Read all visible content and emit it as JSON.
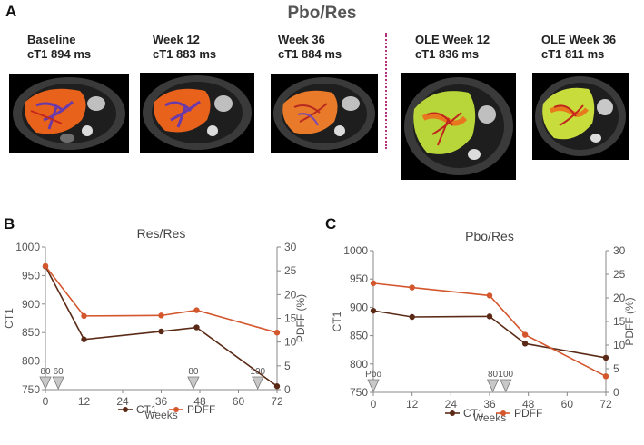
{
  "panel_a": {
    "letter": "A",
    "title": "Pbo/Res",
    "scans": [
      {
        "line1": "Baseline",
        "line2": "cT1 894 ms"
      },
      {
        "line1": "Week 12",
        "line2": "cT1 883 ms"
      },
      {
        "line1": "Week 36",
        "line2": "cT1 884 ms"
      },
      {
        "line1": "OLE Week 12",
        "line2": "cT1 836 ms"
      },
      {
        "line1": "OLE Week 36",
        "line2": "cT1 811 ms"
      }
    ]
  },
  "colors": {
    "ct1": "#5a2a16",
    "pdff": "#d4562c",
    "divider": "#b0327a",
    "marker": "#c8c8c8"
  },
  "chart_data": [
    {
      "id": "B",
      "letter": "B",
      "type": "line",
      "title": "Res/Res",
      "xlabel": "Weeks",
      "ylabel": "CT1",
      "y2label": "PDFF (%)",
      "x_ticks": [
        0,
        12,
        24,
        36,
        48,
        60,
        72
      ],
      "xlim": [
        0,
        72
      ],
      "ylim": [
        750,
        1000
      ],
      "y_ticks": [
        750,
        800,
        850,
        900,
        950,
        1000
      ],
      "y2lim": [
        0,
        30
      ],
      "y2_ticks": [
        0,
        5,
        10,
        15,
        20,
        25,
        30
      ],
      "series": [
        {
          "name": "CT1",
          "axis": "left",
          "x": [
            0,
            12,
            36,
            47,
            72
          ],
          "values": [
            966,
            838,
            852,
            859,
            756
          ]
        },
        {
          "name": "PDFF",
          "axis": "right",
          "x": [
            0,
            12,
            36,
            47,
            72
          ],
          "values": [
            26,
            15.5,
            15.6,
            16.7,
            12
          ]
        }
      ],
      "markers": [
        {
          "x": 0,
          "label": "80"
        },
        {
          "x": 4,
          "label": "60"
        },
        {
          "x": 46,
          "label": "80"
        },
        {
          "x": 66,
          "label": "100"
        }
      ],
      "legend": [
        "CT1",
        "PDFF"
      ]
    },
    {
      "id": "C",
      "letter": "C",
      "type": "line",
      "title": "Pbo/Res",
      "xlabel": "Weeks",
      "ylabel": "CT1",
      "y2label": "PDFF (%)",
      "x_ticks": [
        0,
        12,
        24,
        36,
        48,
        60,
        72
      ],
      "xlim": [
        0,
        72
      ],
      "ylim": [
        750,
        1000
      ],
      "y_ticks": [
        750,
        800,
        850,
        900,
        950,
        1000
      ],
      "y2lim": [
        0,
        30
      ],
      "y2_ticks": [
        0,
        5,
        10,
        15,
        20,
        25,
        30
      ],
      "series": [
        {
          "name": "CT1",
          "axis": "left",
          "x": [
            0,
            12,
            36,
            47,
            72
          ],
          "values": [
            894,
            883,
            884,
            836,
            811
          ]
        },
        {
          "name": "PDFF",
          "axis": "right",
          "x": [
            0,
            12,
            36,
            47,
            72
          ],
          "values": [
            23.1,
            22.2,
            20.5,
            12.2,
            3.4
          ]
        }
      ],
      "markers": [
        {
          "x": 0,
          "label": "Pbo"
        },
        {
          "x": 37,
          "label": "80"
        },
        {
          "x": 41,
          "label": "100"
        }
      ],
      "legend": [
        "CT1",
        "PDFF"
      ]
    }
  ]
}
